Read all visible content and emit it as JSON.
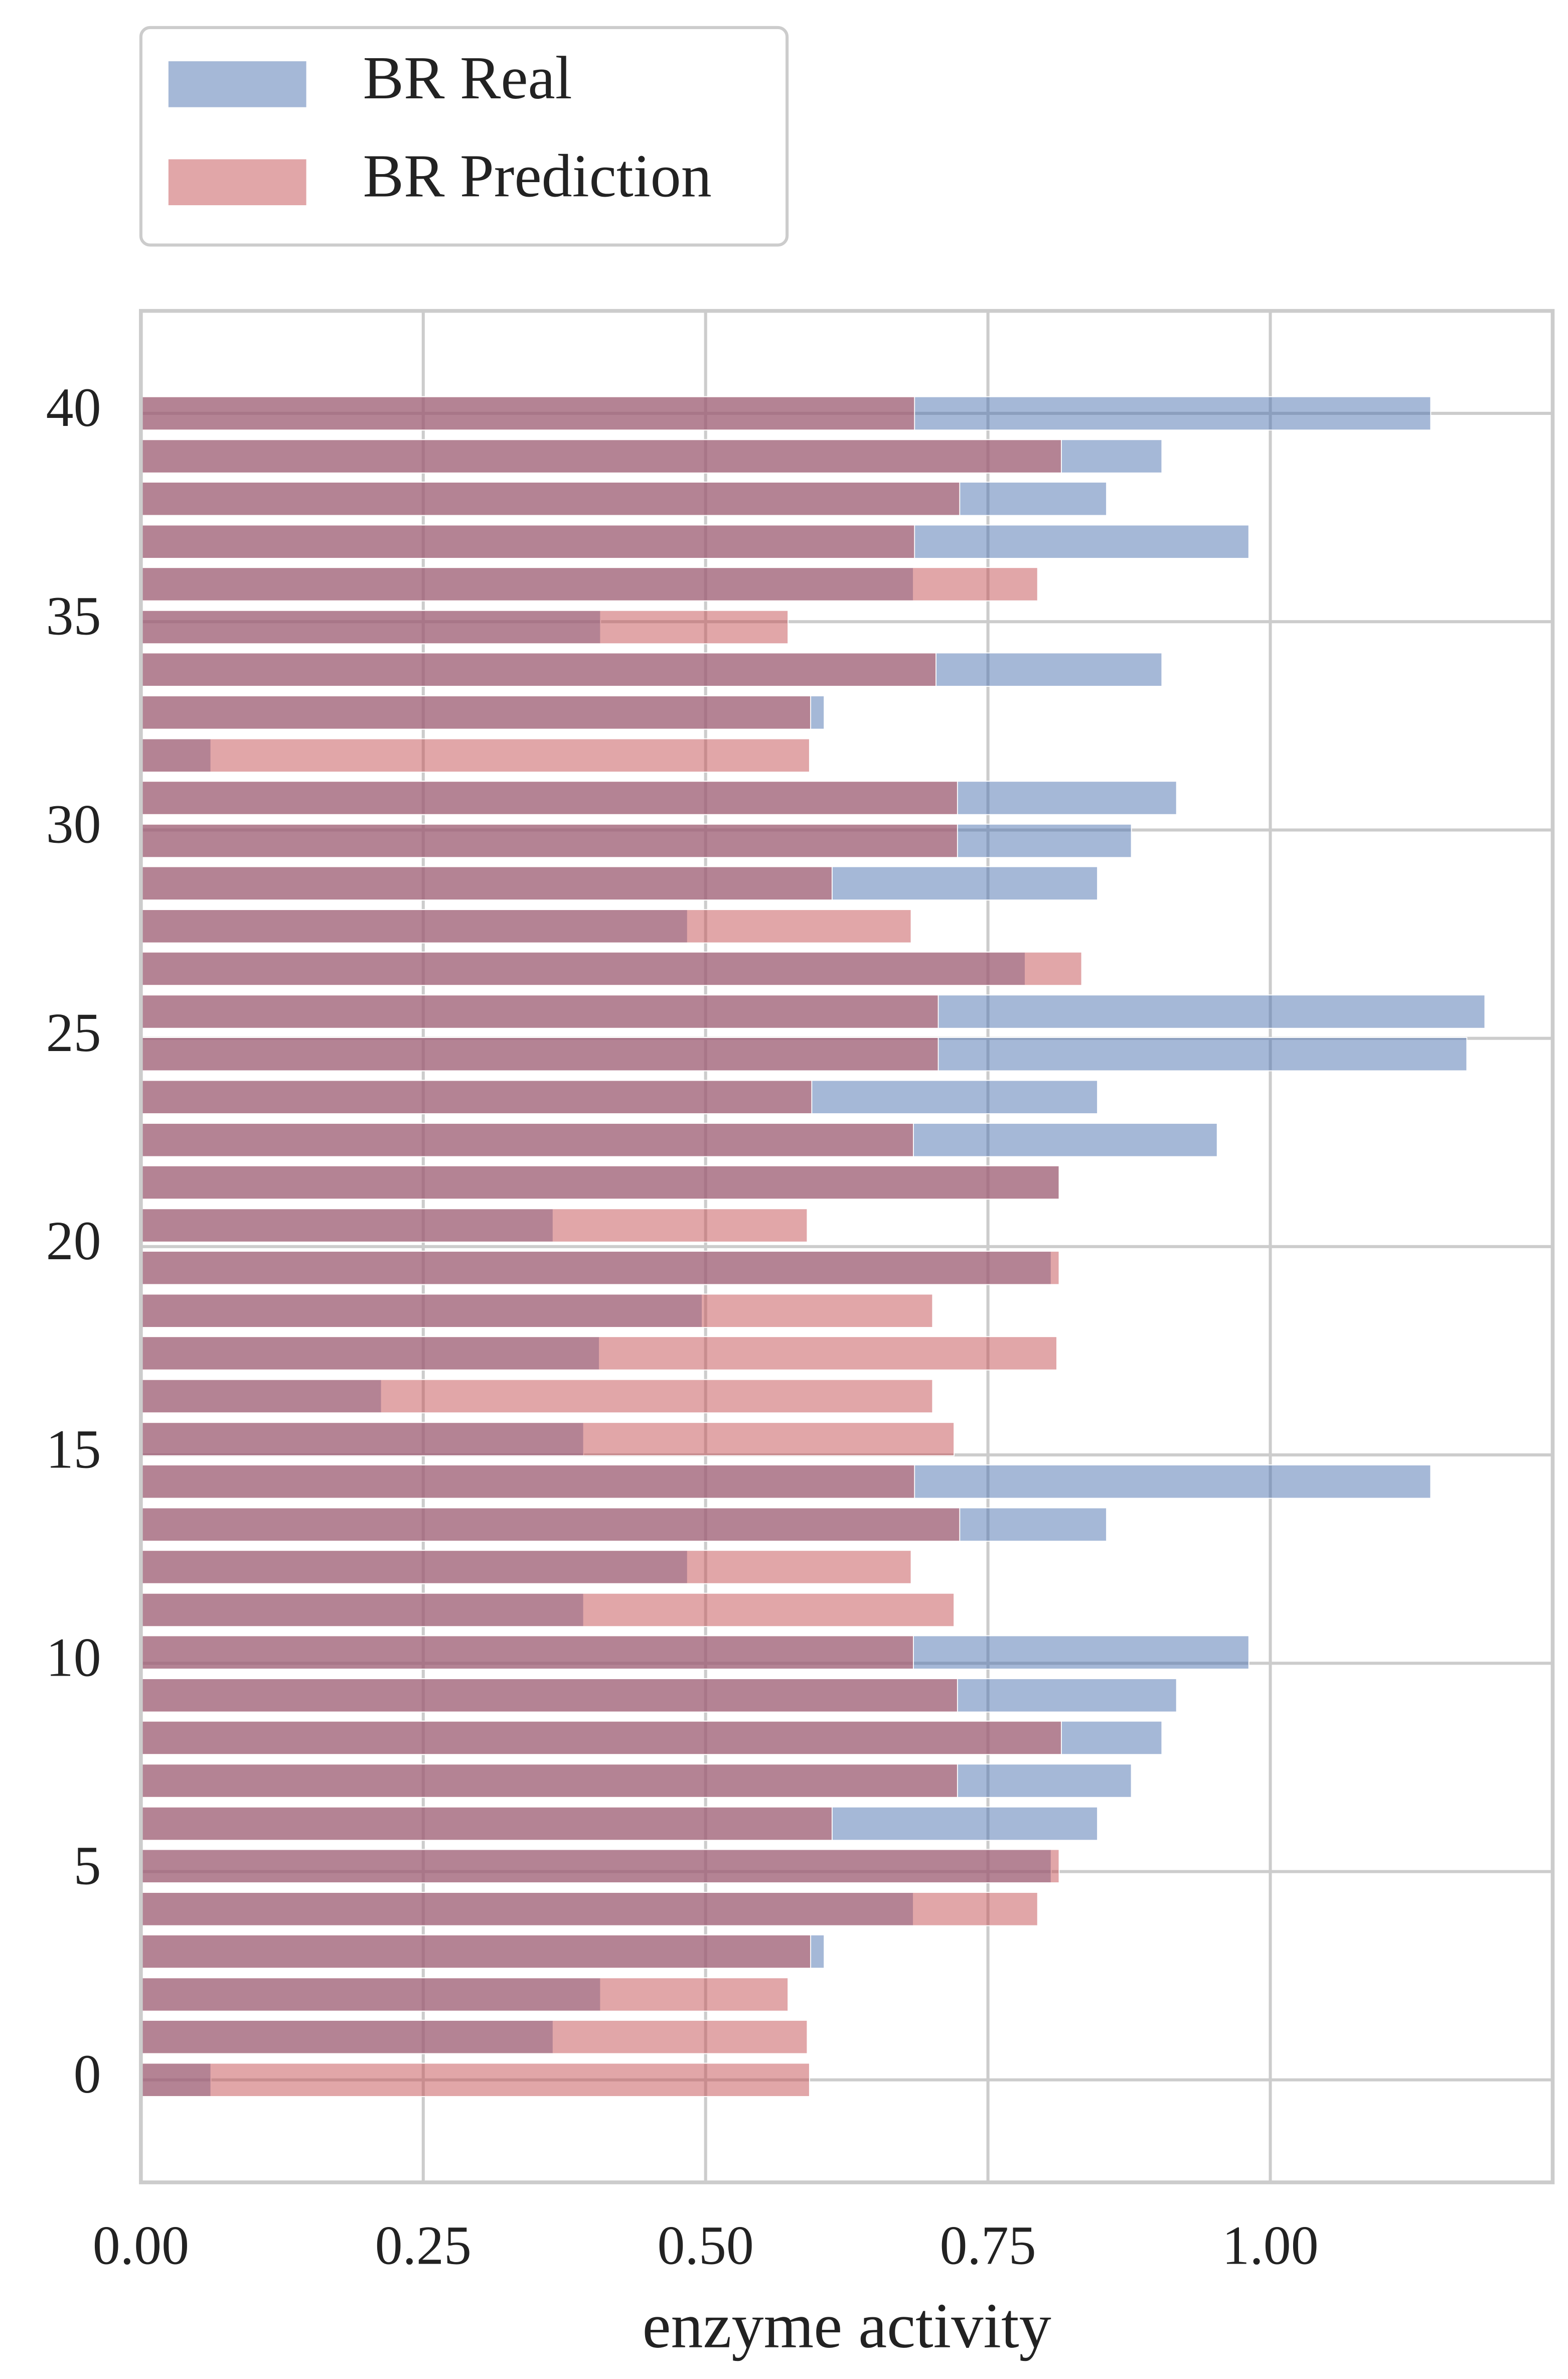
{
  "chart_data": {
    "type": "barh",
    "xlabel": "enzyme activity",
    "y": [
      0,
      1.03,
      2.05,
      3.08,
      4.1,
      5.13,
      6.15,
      7.18,
      8.21,
      9.23,
      10.26,
      11.28,
      12.31,
      13.33,
      14.36,
      15.38,
      16.41,
      17.44,
      18.46,
      19.49,
      20.51,
      21.54,
      22.56,
      23.59,
      24.62,
      25.64,
      26.67,
      27.69,
      28.72,
      29.74,
      30.77,
      31.79,
      32.82,
      33.85,
      34.87,
      35.9,
      36.92,
      37.95,
      38.97,
      40
    ],
    "series": [
      {
        "name": "BR Real",
        "color": "#4c72b0",
        "values": [
          0.062,
          0.365,
          0.407,
          0.605,
          0.684,
          0.806,
          0.847,
          0.877,
          0.904,
          0.917,
          0.981,
          0.392,
          0.484,
          0.855,
          1.142,
          0.392,
          0.213,
          0.406,
          0.497,
          0.806,
          0.365,
          0.813,
          0.953,
          0.847,
          1.174,
          1.19,
          0.783,
          0.484,
          0.847,
          0.877,
          0.917,
          0.062,
          0.605,
          0.904,
          0.407,
          0.684,
          0.981,
          0.855,
          0.904,
          1.142
        ]
      },
      {
        "name": "BR Prediction",
        "color": "#c44e52",
        "values": [
          0.592,
          0.59,
          0.573,
          0.593,
          0.794,
          0.813,
          0.612,
          0.723,
          0.815,
          0.723,
          0.684,
          0.72,
          0.682,
          0.725,
          0.685,
          0.72,
          0.701,
          0.811,
          0.701,
          0.813,
          0.59,
          0.813,
          0.684,
          0.594,
          0.706,
          0.706,
          0.833,
          0.682,
          0.612,
          0.723,
          0.723,
          0.592,
          0.593,
          0.704,
          0.573,
          0.794,
          0.685,
          0.725,
          0.815,
          0.685
        ]
      }
    ],
    "alpha": 0.5,
    "xlim": [
      0,
      1.25
    ],
    "xticks": [
      {
        "value": 0,
        "label": "0.00"
      },
      {
        "value": 0.25,
        "label": "0.25"
      },
      {
        "value": 0.5,
        "label": "0.50"
      },
      {
        "value": 0.75,
        "label": "0.75"
      },
      {
        "value": 1,
        "label": "1.00"
      }
    ],
    "ylim": [
      -2.46,
      42.46
    ],
    "yticks": [
      0,
      5,
      10,
      15,
      20,
      25,
      30,
      35,
      40
    ],
    "grid": true,
    "legend": "upper left outside"
  }
}
